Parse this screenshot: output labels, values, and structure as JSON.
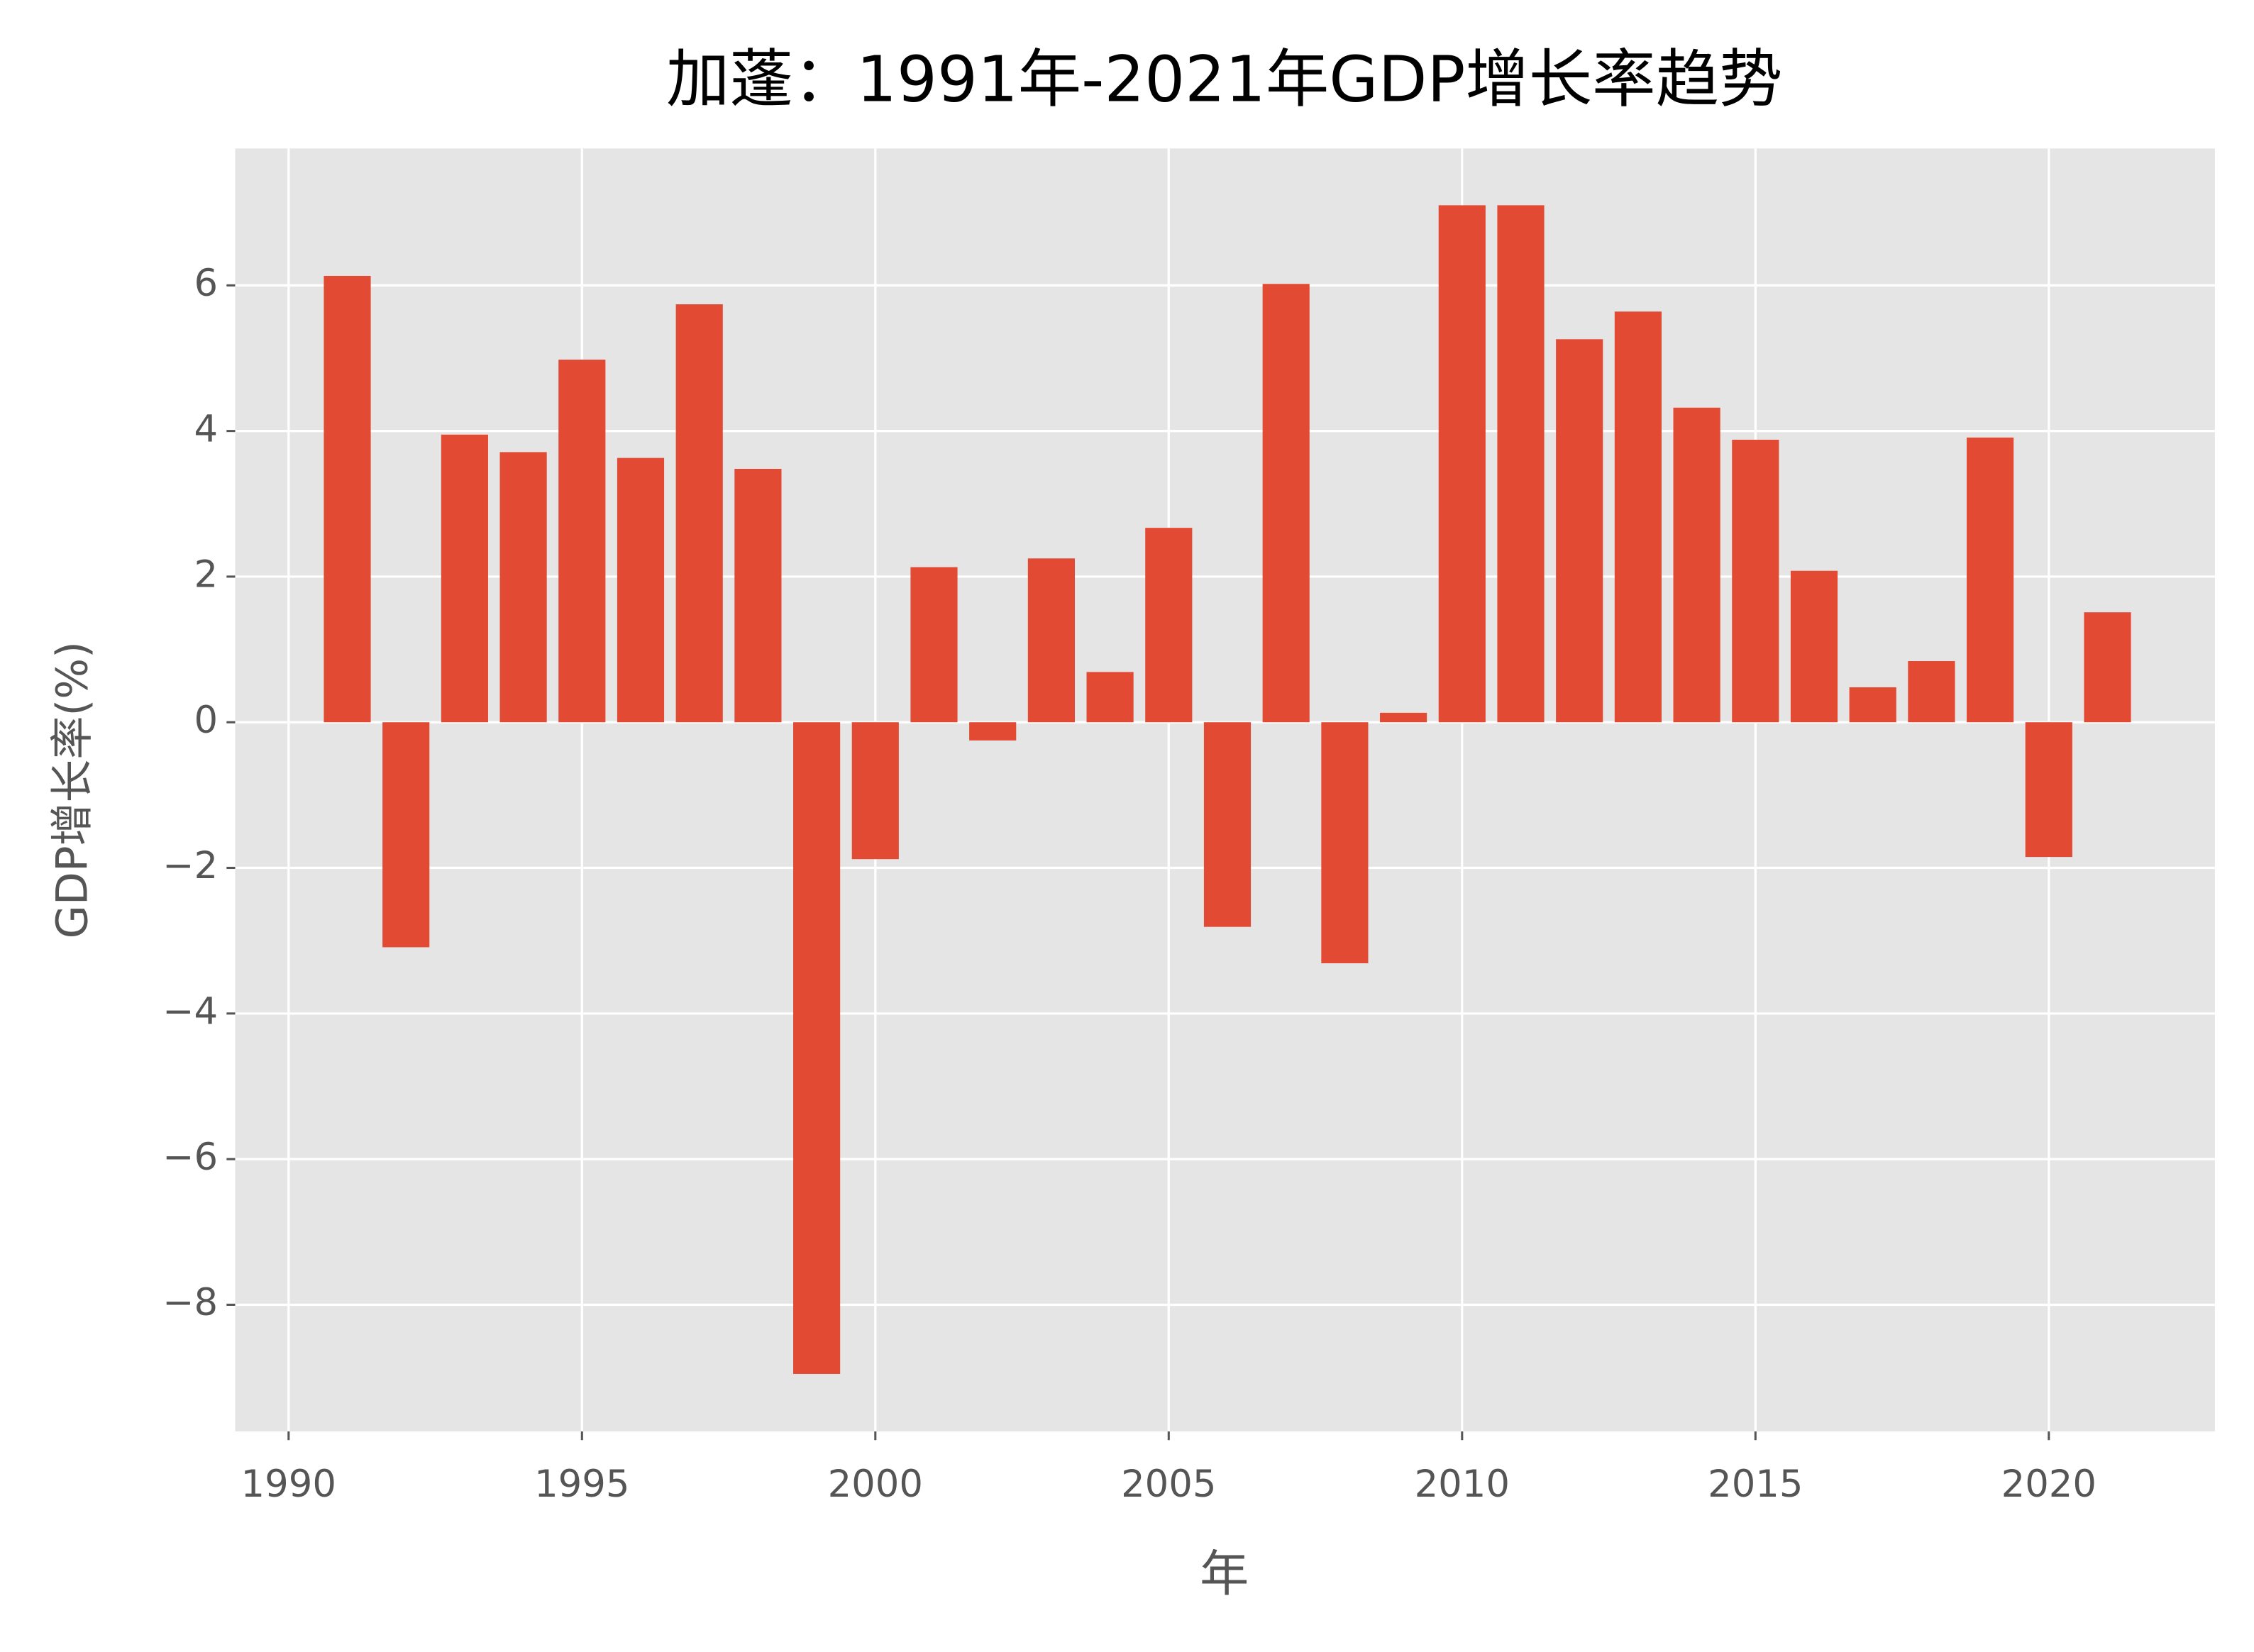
{
  "chart_data": {
    "type": "bar",
    "title": "加蓬：1991年-2021年GDP增长率趋势",
    "x_label": "年",
    "y_label": "GDP增长率(%)",
    "x": [
      1991,
      1992,
      1993,
      1994,
      1995,
      1996,
      1997,
      1998,
      1999,
      2000,
      2001,
      2002,
      2003,
      2004,
      2005,
      2006,
      2007,
      2008,
      2009,
      2010,
      2011,
      2012,
      2013,
      2014,
      2015,
      2016,
      2017,
      2018,
      2019,
      2020,
      2021
    ],
    "values": [
      6.13,
      -3.09,
      3.95,
      3.71,
      4.98,
      3.63,
      5.74,
      3.48,
      -8.95,
      -1.88,
      2.13,
      -0.25,
      2.25,
      0.69,
      2.67,
      -2.81,
      6.02,
      -3.31,
      0.13,
      7.1,
      7.1,
      5.26,
      5.64,
      4.32,
      3.88,
      2.08,
      0.48,
      0.84,
      3.91,
      -1.85,
      1.51
    ],
    "color": "#e24a33",
    "xlim": [
      1989.09,
      2022.83
    ],
    "ylim": [
      -9.74,
      7.88
    ],
    "xticks": [
      1990,
      1995,
      2000,
      2005,
      2010,
      2015,
      2020
    ],
    "yticks": [
      {
        "value": -8,
        "label": "−8"
      },
      {
        "value": -6,
        "label": "−6"
      },
      {
        "value": -4,
        "label": "−4"
      },
      {
        "value": -2,
        "label": "−2"
      },
      0,
      2,
      4,
      6
    ],
    "grid": true
  }
}
